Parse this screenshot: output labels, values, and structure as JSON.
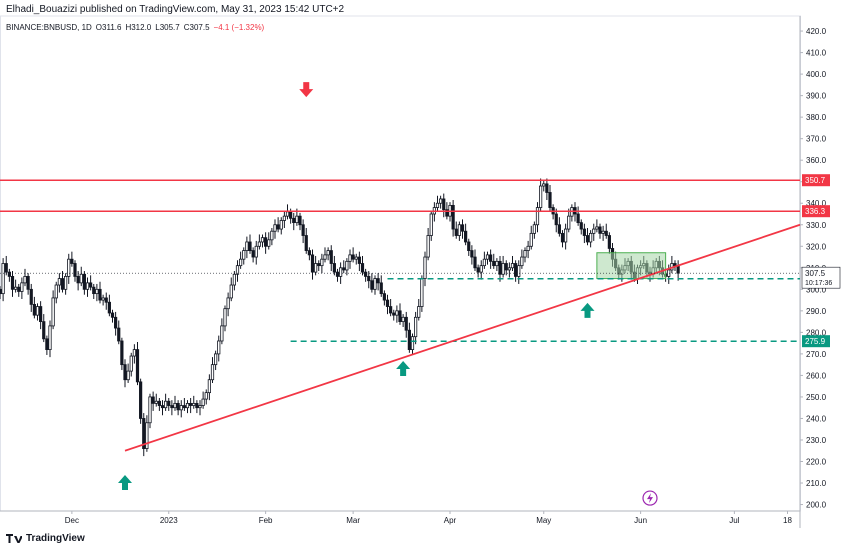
{
  "publisher_line": "Elhadi_Bouazizi published on TradingView.com, May 31, 2023 15:42 UTC+2",
  "brand": {
    "name": "TradingView",
    "logo_icon": "tradingview-logo-icon"
  },
  "colors": {
    "up": "#131722",
    "down": "#131722",
    "resistance": "#f23645",
    "support_dashed": "#089981",
    "arrow_up": "#089981",
    "arrow_down": "#f23645",
    "range_box_fill": "#a5d6a7",
    "range_box_stroke": "#4caf50",
    "price_badge": "#131722",
    "events_icon": "#9c27b0"
  },
  "chart_data": {
    "type": "candlestick",
    "symbol": "BINANCE:BNBUSD",
    "interval": "1D",
    "legend": {
      "symbol_text": "BINANCE:BNBUSD, 1D",
      "o": "O311.6",
      "h": "H312.0",
      "l": "L305.7",
      "c": "C307.5",
      "change": "−4.1 (−1.32%)"
    },
    "y_axis": {
      "range": [
        197,
        427
      ],
      "ticks": [
        200,
        210,
        220,
        230,
        240,
        250,
        260,
        270,
        280,
        290,
        300,
        310,
        320,
        330,
        340,
        350,
        360,
        370,
        380,
        390,
        400,
        410,
        420
      ],
      "tick_labels": [
        "200.0",
        "210.0",
        "220.0",
        "230.0",
        "240.0",
        "250.0",
        "260.0",
        "270.0",
        "280.0",
        "290.0",
        "300.0",
        "310.0",
        "320.0",
        "330.0",
        "340.0",
        "350.0",
        "360.0",
        "370.0",
        "380.0",
        "390.0",
        "400.0",
        "410.0",
        "420.0"
      ]
    },
    "x_axis": {
      "labels": [
        {
          "day": 35,
          "text": "Dec"
        },
        {
          "day": 66,
          "text": "2023"
        },
        {
          "day": 97,
          "text": "Feb"
        },
        {
          "day": 125,
          "text": "Mar"
        },
        {
          "day": 156,
          "text": "Apr"
        },
        {
          "day": 186,
          "text": "May"
        },
        {
          "day": 217,
          "text": "Jun"
        },
        {
          "day": 247,
          "text": "Jul"
        },
        {
          "day": 264,
          "text": "18"
        }
      ],
      "range": [
        12,
        268
      ]
    },
    "closes": [
      298,
      312,
      308,
      306,
      300,
      301,
      299,
      303,
      306,
      300,
      293,
      288,
      292,
      285,
      277,
      272,
      283,
      296,
      302,
      305,
      300,
      306,
      314,
      312,
      306,
      303,
      307,
      300,
      303,
      301,
      298,
      300,
      295,
      296,
      294,
      289,
      287,
      282,
      276,
      265,
      258,
      262,
      269,
      272,
      257,
      240,
      226,
      238,
      250,
      247,
      248,
      246,
      245,
      248,
      246,
      245,
      247,
      244,
      246,
      245,
      247,
      246,
      247,
      245,
      246,
      249,
      252,
      258,
      265,
      270,
      276,
      283,
      291,
      296,
      302,
      307,
      311,
      314,
      318,
      322,
      318,
      315,
      320,
      322,
      324,
      320,
      323,
      327,
      330,
      328,
      332,
      334,
      336,
      333,
      331,
      334,
      330,
      325,
      318,
      316,
      308,
      312,
      311,
      314,
      316,
      318,
      312,
      308,
      306,
      310,
      309,
      313,
      316,
      314,
      315,
      312,
      308,
      306,
      304,
      300,
      305,
      303,
      298,
      295,
      292,
      289,
      288,
      290,
      285,
      287,
      281,
      272,
      278,
      287,
      292,
      305,
      315,
      325,
      335,
      338,
      340,
      342,
      337,
      334,
      339,
      328,
      325,
      330,
      327,
      322,
      318,
      315,
      310,
      308,
      311,
      314,
      316,
      313,
      311,
      313,
      307,
      312,
      309,
      310,
      312,
      306,
      311,
      315,
      318,
      320,
      326,
      330,
      338,
      348,
      349,
      345,
      338,
      335,
      330,
      326,
      322,
      328,
      334,
      338,
      335,
      331,
      328,
      325,
      322,
      326,
      328,
      329,
      326,
      327,
      325,
      319,
      314,
      310,
      307,
      309,
      311,
      313,
      308,
      305,
      310,
      311,
      312,
      308,
      307,
      310,
      313,
      310,
      307,
      306,
      309,
      312,
      311,
      307.5
    ],
    "resistance_levels": [
      {
        "price": 350.7,
        "label": "350.7"
      },
      {
        "price": 336.3,
        "label": "336.3"
      }
    ],
    "support_levels": [
      {
        "price": 304.9,
        "label": "304.9",
        "from_day": 136
      },
      {
        "price": 275.9,
        "label": "275.9",
        "from_day": 105
      }
    ],
    "trendline": {
      "points": [
        {
          "day": 52,
          "price": 225
        },
        {
          "day": 268,
          "price": 330
        }
      ]
    },
    "range_box": {
      "from_day": 203,
      "to_day": 225,
      "low": 305,
      "high": 317
    },
    "last_price": {
      "price": 307.5,
      "label": "307.5",
      "countdown": "10:17:36"
    },
    "arrows": [
      {
        "dir": "up",
        "day": 52,
        "price": 210
      },
      {
        "dir": "down",
        "day": 110,
        "price": 393
      },
      {
        "dir": "up",
        "day": 141,
        "price": 263
      },
      {
        "dir": "up",
        "day": 200,
        "price": 290
      }
    ],
    "events_icon": {
      "day": 220,
      "price": 203,
      "icon": "lightning-icon"
    }
  }
}
